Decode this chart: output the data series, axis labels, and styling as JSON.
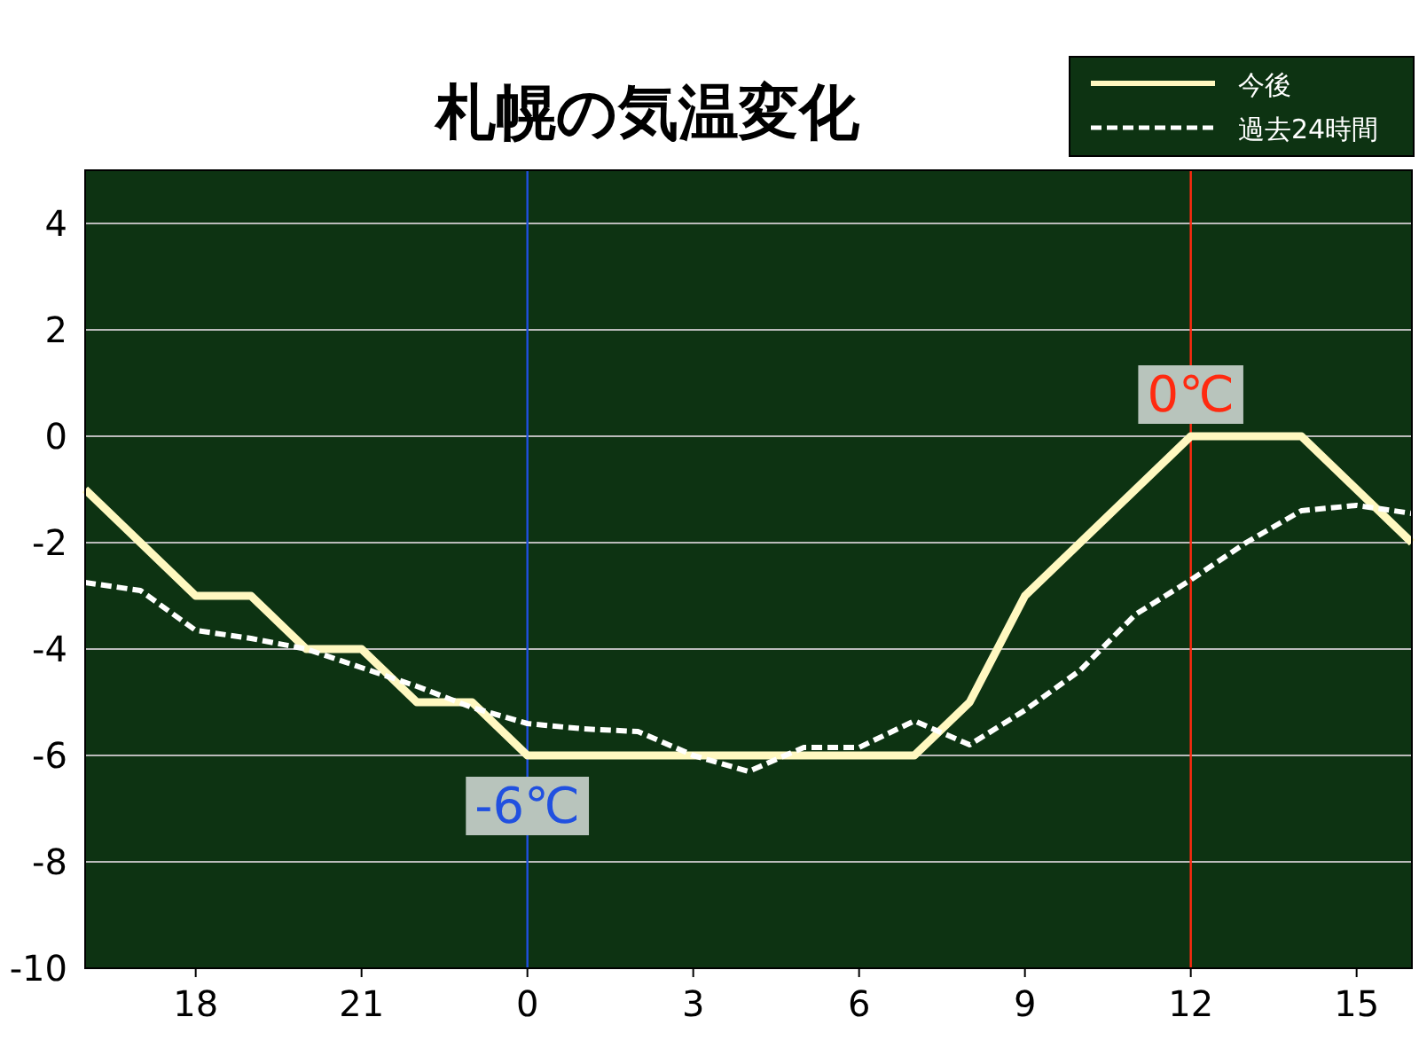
{
  "chart_data": {
    "type": "line",
    "title": "札幌の気温変化",
    "categories": [
      null,
      null,
      "18",
      null,
      null,
      "21",
      null,
      null,
      "0",
      null,
      null,
      "3",
      null,
      null,
      "6",
      null,
      null,
      "9",
      null,
      null,
      "12",
      null,
      null,
      "15",
      null
    ],
    "series": [
      {
        "name": "今後",
        "color": "#fff8c0",
        "line_style": "solid",
        "values": [
          -1,
          -2,
          -3,
          -3,
          -4,
          -4,
          -5,
          -5,
          -6,
          -6,
          -6,
          -6,
          -6,
          -6,
          -6,
          -6,
          -5,
          -3,
          -2,
          -1,
          0,
          0,
          0,
          -1,
          -2
        ]
      },
      {
        "name": "過去24時間",
        "color": "#ffffff",
        "line_style": "dashed",
        "values": [
          -2.75,
          -2.9,
          -3.65,
          -3.8,
          -4.0,
          -4.35,
          -4.7,
          -5.1,
          -5.4,
          -5.5,
          -5.55,
          -6.0,
          -6.3,
          -5.85,
          -5.85,
          -5.35,
          -5.8,
          -5.15,
          -4.4,
          -3.35,
          -2.7,
          -2.0,
          -1.4,
          -1.3,
          -1.45
        ]
      }
    ],
    "ylim": [
      -10,
      5
    ],
    "yticks": [
      -10,
      -8,
      -6,
      -4,
      -2,
      0,
      2,
      4
    ],
    "grid": "y",
    "legend": "top right",
    "ref_lines": [
      {
        "axis": "x",
        "value": "0",
        "color": "#2050e0"
      },
      {
        "axis": "x",
        "value": "12",
        "color": "#ff2a10"
      }
    ],
    "annotations": [
      {
        "text": "-6℃",
        "x": "0",
        "y": -6
      },
      {
        "text": "0℃",
        "x": "12",
        "y": 0
      }
    ]
  }
}
